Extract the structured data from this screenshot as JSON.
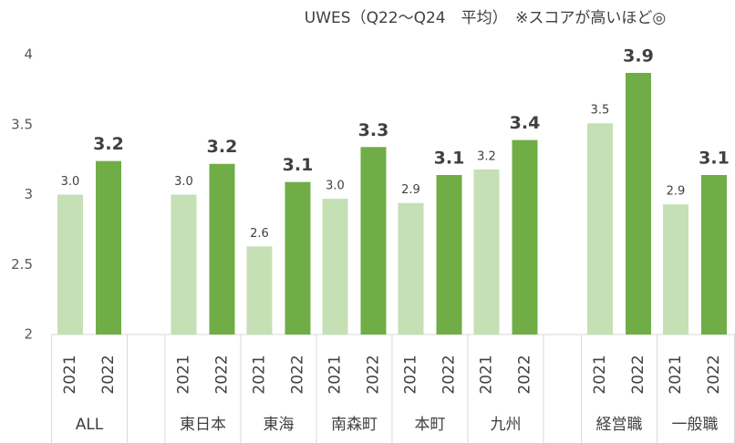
{
  "chart_data": {
    "type": "bar",
    "title": "UWES（Q22～Q24　平均）　※スコアが高いほど◎",
    "categories": [
      "ALL",
      null,
      "東日本",
      "東海",
      "南森町",
      "本町",
      "九州",
      null,
      "経営職",
      "一般職"
    ],
    "series": [
      {
        "name": "2021",
        "color": "#c5e0b4",
        "values": [
          3.0,
          null,
          3.0,
          2.63,
          2.97,
          2.94,
          3.18,
          null,
          3.51,
          2.93
        ],
        "value_labels": [
          "3.0",
          null,
          "3.0",
          "2.6",
          "3.0",
          "2.9",
          "3.2",
          null,
          "3.5",
          "2.9"
        ]
      },
      {
        "name": "2022",
        "color": "#70ad47",
        "values": [
          3.24,
          null,
          3.22,
          3.09,
          3.34,
          3.14,
          3.39,
          null,
          3.87,
          3.14
        ],
        "value_labels": [
          "3.2",
          null,
          "3.2",
          "3.1",
          "3.3",
          "3.1",
          "3.4",
          null,
          "3.9",
          "3.1"
        ]
      }
    ],
    "ylim": [
      2,
      4
    ],
    "yticks": [
      2,
      2.5,
      3,
      3.5,
      4
    ],
    "grid": false
  }
}
